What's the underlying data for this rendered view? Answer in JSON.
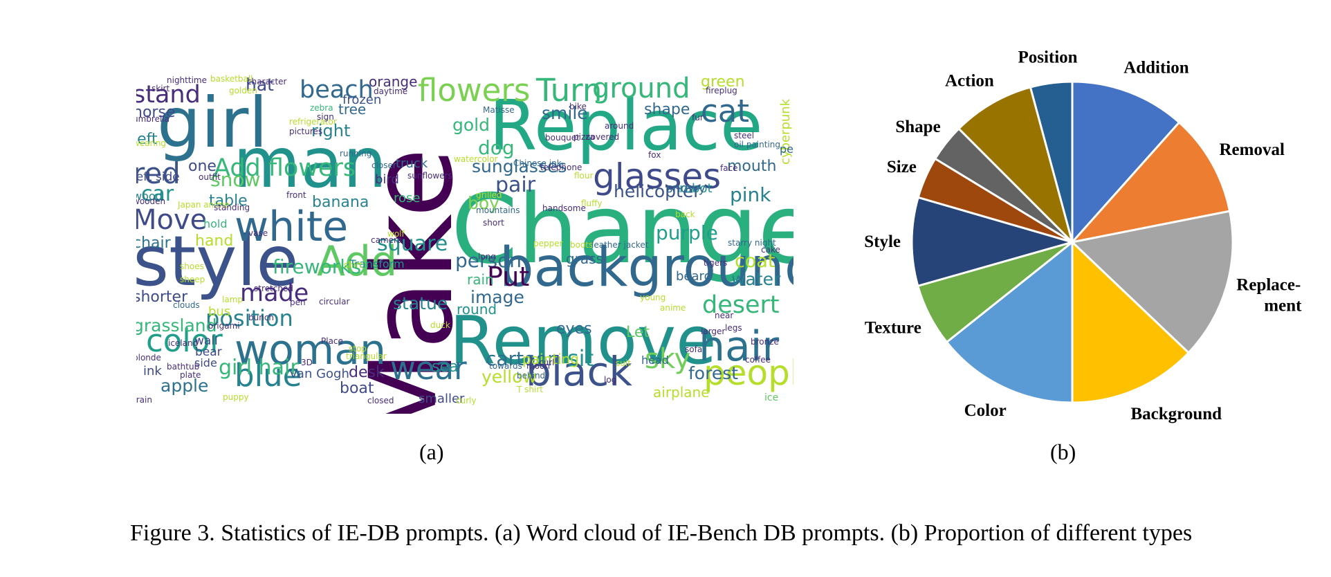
{
  "caption": "Figure 3. Statistics of IE-DB prompts. (a) Word cloud of IE-Bench DB prompts. (b) Proportion of different types",
  "sublabel_a": "(a)",
  "sublabel_b": "(b)",
  "chart_data": [
    {
      "type": "wordcloud",
      "palette": [
        "#440154",
        "#3b528b",
        "#21918c",
        "#5ec962",
        "#b5de2b",
        "#fde725"
      ],
      "words": [
        {
          "text": "Make",
          "color": "#440154",
          "rotate": true
        },
        {
          "text": "Change",
          "color": "#2ab07f"
        },
        {
          "text": "Replace",
          "color": "#22a884"
        },
        {
          "text": "Remove",
          "color": "#21918c"
        },
        {
          "text": "background",
          "color": "#31688e"
        },
        {
          "text": "style",
          "color": "#3b528b"
        },
        {
          "text": "man",
          "color": "#21918c"
        },
        {
          "text": "girl",
          "color": "#2c728e"
        },
        {
          "text": "woman",
          "color": "#2c728e"
        },
        {
          "text": "black",
          "color": "#3b528b"
        },
        {
          "text": "white",
          "color": "#31688e"
        },
        {
          "text": "glasses",
          "color": "#3e4a89"
        },
        {
          "text": "hair",
          "color": "#2c728e"
        },
        {
          "text": "people",
          "color": "#b5de2b"
        },
        {
          "text": "blue",
          "color": "#26828e"
        },
        {
          "text": "wear",
          "color": "#2c728e"
        },
        {
          "text": "flowers",
          "color": "#7ad151"
        },
        {
          "text": "Turn",
          "color": "#35b779"
        },
        {
          "text": "ground",
          "color": "#35b779"
        },
        {
          "text": "Add flowers",
          "color": "#35b779"
        },
        {
          "text": "Add",
          "color": "#5ec962"
        },
        {
          "text": "color",
          "color": "#1f9e89"
        },
        {
          "text": "cat",
          "color": "#31688e"
        },
        {
          "text": "red",
          "color": "#3b528b"
        },
        {
          "text": "Move",
          "color": "#3e4a89"
        },
        {
          "text": "position",
          "color": "#26828e"
        },
        {
          "text": "made",
          "color": "#472d7b"
        },
        {
          "text": "desert",
          "color": "#35b779"
        },
        {
          "text": "sky",
          "color": "#6ece58"
        },
        {
          "text": "sit",
          "color": "#21918c"
        },
        {
          "text": "cartoon",
          "color": "#2c728e"
        },
        {
          "text": "yellow",
          "color": "#b5de2b"
        },
        {
          "text": "beach",
          "color": "#31688e"
        },
        {
          "text": "stand",
          "color": "#472d7b"
        },
        {
          "text": "pink",
          "color": "#26828e"
        },
        {
          "text": "car",
          "color": "#21918c"
        },
        {
          "text": "snow",
          "color": "#5ec962"
        },
        {
          "text": "fireworks",
          "color": "#35b779"
        },
        {
          "text": "square",
          "color": "#21918c"
        },
        {
          "text": "person",
          "color": "#31688e"
        },
        {
          "text": "Put",
          "color": "#440154"
        },
        {
          "text": "statue",
          "color": "#26828e"
        },
        {
          "text": "image",
          "color": "#31688e"
        },
        {
          "text": "sunglasses",
          "color": "#31688e"
        },
        {
          "text": "dog",
          "color": "#35b779"
        },
        {
          "text": "gold",
          "color": "#35b779"
        },
        {
          "text": "smile",
          "color": "#31688e"
        },
        {
          "text": "shape",
          "color": "#31688e"
        },
        {
          "text": "pair",
          "color": "#3b528b"
        },
        {
          "text": "girl hair",
          "color": "#35b779"
        },
        {
          "text": "apple",
          "color": "#2c728e"
        },
        {
          "text": "grassland",
          "color": "#35b779"
        },
        {
          "text": "forest",
          "color": "#31688e"
        },
        {
          "text": "coat",
          "color": "#b5de2b"
        },
        {
          "text": "water",
          "color": "#26828e"
        },
        {
          "text": "purple",
          "color": "#1f9e89"
        },
        {
          "text": "helicopter",
          "color": "#3b528b"
        },
        {
          "text": "hat",
          "color": "#3e4a89"
        },
        {
          "text": "horse",
          "color": "#3e4a89"
        },
        {
          "text": "left",
          "color": "#26828e"
        },
        {
          "text": "right",
          "color": "#26828e"
        },
        {
          "text": "one",
          "color": "#3e4a89"
        },
        {
          "text": "table",
          "color": "#26828e"
        },
        {
          "text": "chair",
          "color": "#2c728e"
        },
        {
          "text": "hand",
          "color": "#b5de2b"
        },
        {
          "text": "tree",
          "color": "#31688e"
        },
        {
          "text": "green",
          "color": "#b5de2b"
        },
        {
          "text": "cyberpunk",
          "color": "#b5de2b",
          "rotate": true
        },
        {
          "text": "mouth",
          "color": "#31688e"
        },
        {
          "text": "banana",
          "color": "#26828e"
        },
        {
          "text": "boy",
          "color": "#7ad151"
        },
        {
          "text": "eyes",
          "color": "#31688e"
        },
        {
          "text": "boat",
          "color": "#3e4a89"
        },
        {
          "text": "desk",
          "color": "#472d7b"
        },
        {
          "text": "sea",
          "color": "#21918c"
        },
        {
          "text": "airplane",
          "color": "#b5de2b"
        },
        {
          "text": "shorter",
          "color": "#3e4a89"
        },
        {
          "text": "orange",
          "color": "#472d7b"
        },
        {
          "text": "frozen",
          "color": "#3b528b"
        },
        {
          "text": "painting",
          "color": "#b5de2b"
        },
        {
          "text": "rain",
          "color": "#35b779"
        },
        {
          "text": "round",
          "color": "#21918c"
        },
        {
          "text": "grass",
          "color": "#31688e"
        },
        {
          "text": "beard",
          "color": "#31688e"
        },
        {
          "text": "robot",
          "color": "#21918c"
        },
        {
          "text": "Van Gogh",
          "color": "#3b528b"
        },
        {
          "text": "wall",
          "color": "#3e4a89"
        },
        {
          "text": "bear",
          "color": "#3e4a89"
        },
        {
          "text": "ink",
          "color": "#3e4a89"
        },
        {
          "text": "side",
          "color": "#3e4a89"
        },
        {
          "text": "bus",
          "color": "#b5de2b"
        },
        {
          "text": "hold",
          "color": "#35b779"
        },
        {
          "text": "wood",
          "color": "#26828e"
        },
        {
          "text": "rose",
          "color": "#35b779"
        },
        {
          "text": "truck",
          "color": "#31688e"
        },
        {
          "text": "bird",
          "color": "#472d7b"
        },
        {
          "text": "smaller",
          "color": "#3e4a89"
        },
        {
          "text": "Transform",
          "color": "#21918c"
        },
        {
          "text": "left side",
          "color": "#3e4a89"
        },
        {
          "text": "snowy",
          "color": "#31688e"
        },
        {
          "text": "Let",
          "color": "#5ec962"
        },
        {
          "text": "head",
          "color": "#31688e"
        },
        {
          "text": "peal",
          "color": "#31688e"
        },
        {
          "text": "ice",
          "color": "#5ec962"
        },
        {
          "text": "nighttime",
          "color": "#472d7b"
        },
        {
          "text": "basketball",
          "color": "#b5de2b"
        },
        {
          "text": "character",
          "color": "#472d7b"
        },
        {
          "text": "golden",
          "color": "#b5de2b"
        },
        {
          "text": "daytime",
          "color": "#472d7b"
        },
        {
          "text": "fireplug",
          "color": "#472d7b"
        },
        {
          "text": "umbrella",
          "color": "#472d7b"
        },
        {
          "text": "refrigerator",
          "color": "#b5de2b"
        },
        {
          "text": "pictures",
          "color": "#472d7b"
        },
        {
          "text": "zebra",
          "color": "#35b779"
        },
        {
          "text": "running",
          "color": "#31688e"
        },
        {
          "text": "closer",
          "color": "#31688e"
        },
        {
          "text": "sunflowers",
          "color": "#472d7b"
        },
        {
          "text": "watercolor",
          "color": "#b5de2b"
        },
        {
          "text": "Matisse",
          "color": "#31688e"
        },
        {
          "text": "bouquet",
          "color": "#472d7b"
        },
        {
          "text": "pizza",
          "color": "#472d7b"
        },
        {
          "text": "covered",
          "color": "#472d7b"
        },
        {
          "text": "fur",
          "color": "#472d7b"
        },
        {
          "text": "fox",
          "color": "#472d7b"
        },
        {
          "text": "steel",
          "color": "#472d7b"
        },
        {
          "text": "oil painting",
          "color": "#31688e"
        },
        {
          "text": "face",
          "color": "#472d7b"
        },
        {
          "text": "outfit",
          "color": "#472d7b"
        },
        {
          "text": "wooden",
          "color": "#472d7b"
        },
        {
          "text": "Japan anime",
          "color": "#b5de2b"
        },
        {
          "text": "standing",
          "color": "#472d7b"
        },
        {
          "text": "front",
          "color": "#472d7b"
        },
        {
          "text": "grilled",
          "color": "#b5de2b"
        },
        {
          "text": "Chinese ink",
          "color": "#31688e"
        },
        {
          "text": "telephone",
          "color": "#472d7b"
        },
        {
          "text": "fluffy",
          "color": "#b5de2b"
        },
        {
          "text": "handsome",
          "color": "#472d7b"
        },
        {
          "text": "mountains",
          "color": "#31688e"
        },
        {
          "text": "wolf",
          "color": "#b5de2b"
        },
        {
          "text": "short",
          "color": "#472d7b"
        },
        {
          "text": "pepper",
          "color": "#b5de2b"
        },
        {
          "text": "boots",
          "color": "#b5de2b"
        },
        {
          "text": "leather jacket",
          "color": "#31688e"
        },
        {
          "text": "long",
          "color": "#472d7b"
        },
        {
          "text": "tigers",
          "color": "#472d7b"
        },
        {
          "text": "starry night",
          "color": "#31688e"
        },
        {
          "text": "cake",
          "color": "#472d7b"
        },
        {
          "text": "camera",
          "color": "#472d7b"
        },
        {
          "text": "shirt",
          "color": "#b5de2b"
        },
        {
          "text": "shoes",
          "color": "#b5de2b"
        },
        {
          "text": "sheep",
          "color": "#b5de2b"
        },
        {
          "text": "stretched",
          "color": "#472d7b"
        },
        {
          "text": "pen",
          "color": "#472d7b"
        },
        {
          "text": "lamp",
          "color": "#b5de2b"
        },
        {
          "text": "circular",
          "color": "#472d7b"
        },
        {
          "text": "bunch",
          "color": "#472d7b"
        },
        {
          "text": "clouds",
          "color": "#31688e"
        },
        {
          "text": "origami",
          "color": "#472d7b"
        },
        {
          "text": "young",
          "color": "#b5de2b"
        },
        {
          "text": "anime",
          "color": "#b5de2b"
        },
        {
          "text": "near",
          "color": "#472d7b"
        },
        {
          "text": "legs",
          "color": "#472d7b"
        },
        {
          "text": "larger",
          "color": "#472d7b"
        },
        {
          "text": "sofa",
          "color": "#472d7b"
        },
        {
          "text": "coffee",
          "color": "#472d7b"
        },
        {
          "text": "Place",
          "color": "#472d7b"
        },
        {
          "text": "stop",
          "color": "#b5de2b"
        },
        {
          "text": "triangular",
          "color": "#b5de2b"
        },
        {
          "text": "duck",
          "color": "#b5de2b"
        },
        {
          "text": "blonde",
          "color": "#472d7b"
        },
        {
          "text": "iceland",
          "color": "#472d7b"
        },
        {
          "text": "bathtub",
          "color": "#472d7b"
        },
        {
          "text": "plate",
          "color": "#472d7b"
        },
        {
          "text": "3D",
          "color": "#472d7b"
        },
        {
          "text": "closed",
          "color": "#472d7b"
        },
        {
          "text": "train",
          "color": "#472d7b"
        },
        {
          "text": "puppy",
          "color": "#b5de2b"
        },
        {
          "text": "curly",
          "color": "#b5de2b"
        },
        {
          "text": "behind",
          "color": "#31688e"
        },
        {
          "text": "T shirt",
          "color": "#b5de2b"
        },
        {
          "text": "towards",
          "color": "#31688e"
        },
        {
          "text": "moon",
          "color": "#472d7b"
        },
        {
          "text": "curl",
          "color": "#472d7b"
        },
        {
          "text": "log",
          "color": "#472d7b"
        },
        {
          "text": "suit",
          "color": "#b5de2b"
        },
        {
          "text": "bronze",
          "color": "#472d7b"
        },
        {
          "text": "bike",
          "color": "#472d7b"
        },
        {
          "text": "around",
          "color": "#472d7b"
        },
        {
          "text": "skirt",
          "color": "#472d7b"
        },
        {
          "text": "wearing",
          "color": "#b5de2b"
        },
        {
          "text": "flour",
          "color": "#b5de2b"
        },
        {
          "text": "vase",
          "color": "#472d7b"
        },
        {
          "text": "sign",
          "color": "#472d7b"
        },
        {
          "text": "back",
          "color": "#b5de2b"
        },
        {
          "text": "road",
          "color": "#472d7b"
        },
        {
          "text": "cars",
          "color": "#b5de2b"
        },
        {
          "text": "longer",
          "color": "#b5de2b"
        }
      ]
    },
    {
      "type": "pie",
      "start_angle_deg": 90,
      "direction": "clockwise",
      "slices": [
        {
          "label": "Addition",
          "value": 11.6,
          "color": "#4472c4"
        },
        {
          "label": "Removal",
          "value": 10.3,
          "color": "#ed7d31"
        },
        {
          "label": "Replace-\nment",
          "value": 15.2,
          "color": "#a5a5a5"
        },
        {
          "label": "Background",
          "value": 12.9,
          "color": "#ffc000"
        },
        {
          "label": "Color",
          "value": 14.3,
          "color": "#5b9bd5"
        },
        {
          "label": "Texture",
          "value": 6.3,
          "color": "#70ad47"
        },
        {
          "label": "Style",
          "value": 8.9,
          "color": "#264478"
        },
        {
          "label": "Size",
          "value": 4.2,
          "color": "#9e480e"
        },
        {
          "label": "Shape",
          "value": 3.8,
          "color": "#636363"
        },
        {
          "label": "Action",
          "value": 8.3,
          "color": "#997300"
        },
        {
          "label": "Position",
          "value": 4.2,
          "color": "#255e91"
        }
      ]
    }
  ]
}
